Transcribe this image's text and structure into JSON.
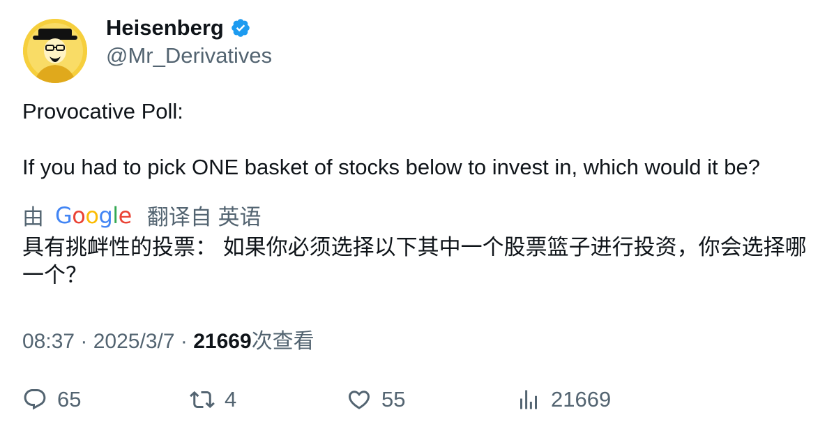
{
  "author": {
    "name": "Heisenberg",
    "handle": "@Mr_Derivatives",
    "verified": true,
    "avatar_icon": "heisenberg-avatar-icon"
  },
  "tweet": {
    "line1": "Provocative Poll:",
    "line2": "If you had to pick ONE basket of stocks below to invest in, which would it be?"
  },
  "translation": {
    "prefix": "由",
    "provider": "Google",
    "suffix": "翻译自 英语",
    "text": "具有挑衅性的投票： 如果你必须选择以下其中一个股票篮子进行投资，你会选择哪一个？"
  },
  "meta": {
    "time": "08:37",
    "sep1": " · ",
    "date": "2025/3/7",
    "sep2": " · ",
    "views_count": "21669",
    "views_label": "次查看"
  },
  "actions": {
    "replies": "65",
    "retweets": "4",
    "likes": "55",
    "views": "21669"
  },
  "colors": {
    "text": "#0f1419",
    "secondary": "#536471",
    "verified": "#1d9bf0",
    "avatar_bg": "#f6cf3d"
  }
}
